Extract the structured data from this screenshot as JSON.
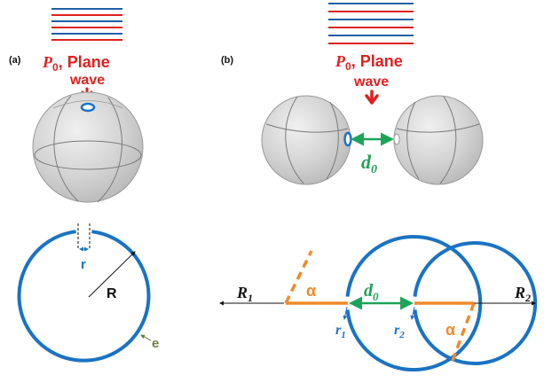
{
  "colors": {
    "wave_red": "#e02020",
    "wave_blue": "#1f5fa8",
    "ring_blue": "#1a73c4",
    "sphere_fill": "#d6d6d6",
    "sphere_line": "#777777",
    "gap_green": "#1fa35a",
    "angle_orange": "#f08a2a",
    "radius_black": "#111111",
    "label_blue": "#1a73c4",
    "label_olive": "#6b7f3a"
  },
  "panel_a": {
    "label": "(a)",
    "source_symbol": "P",
    "source_subscript": "0",
    "source_text": ", Plane",
    "source_text_line2": "wave",
    "dims": {
      "small_radius": "r",
      "big_radius": "R",
      "thickness": "e"
    }
  },
  "panel_b": {
    "label": "(b)",
    "source_symbol": "P",
    "source_subscript": "0",
    "source_text": ", Plane",
    "source_text_line2": "wave",
    "gap_symbol": "d",
    "gap_subscript": "0",
    "dims": {
      "R1_symbol": "R",
      "R1_sub": "1",
      "R2_symbol": "R",
      "R2_sub": "2",
      "r1_symbol": "r",
      "r1_sub": "1",
      "r2_symbol": "r",
      "r2_sub": "2",
      "angle_left": "α",
      "angle_right": "α",
      "gap_symbol": "d",
      "gap_subscript": "0"
    }
  }
}
